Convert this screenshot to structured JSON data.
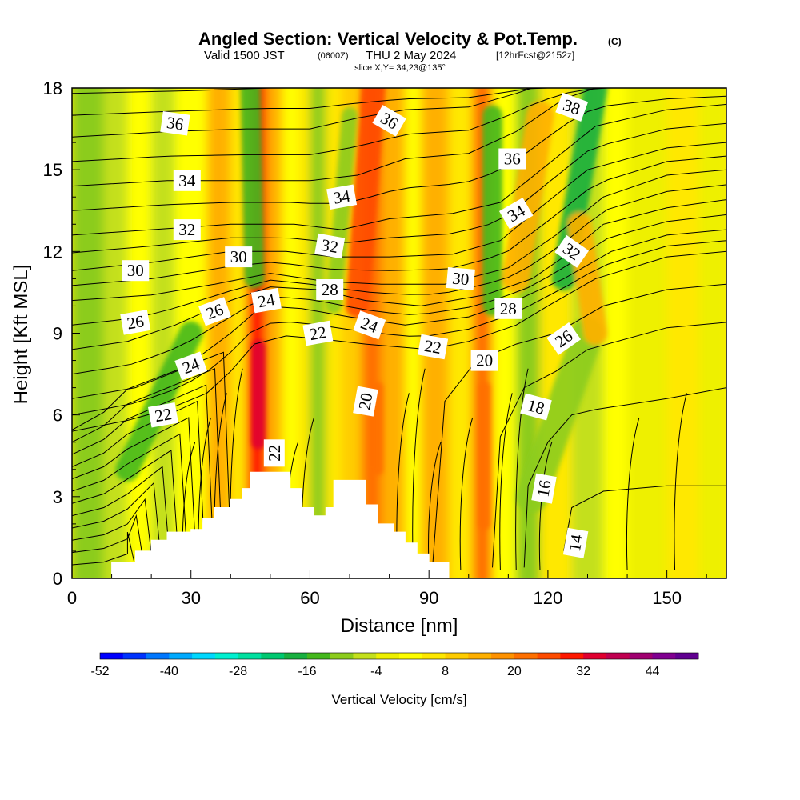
{
  "title": {
    "main": "Angled Section: Vertical Velocity & Pot.Temp.",
    "copyright": "(C)",
    "valid_prefix": "Valid 1500 JST",
    "valid_utc": "(0600Z)",
    "valid_date": "THU 2 May 2024",
    "forecast": "[12hrFcst@2152z]",
    "slice": "slice X,Y= 34,23@135°"
  },
  "chart_data": {
    "type": "heatmap",
    "xlabel": "Distance [nm]",
    "ylabel": "Height [Kft MSL]",
    "xlim": [
      0,
      165
    ],
    "ylim": [
      0,
      18
    ],
    "x_ticks": [
      "0",
      "30",
      "60",
      "90",
      "120",
      "150"
    ],
    "y_ticks": [
      "0",
      "3",
      "6",
      "9",
      "12",
      "15",
      "18"
    ],
    "background_w": 6,
    "columns": [
      {
        "x": [
          0,
          8
        ],
        "w": -10
      },
      {
        "x": [
          8,
          14
        ],
        "w": -8
      },
      {
        "x": [
          14,
          20
        ],
        "w": 0
      },
      {
        "x": [
          20,
          26
        ],
        "w": -8
      },
      {
        "x": [
          26,
          34
        ],
        "w": 0
      },
      {
        "x": [
          34,
          40
        ],
        "w": 12
      },
      {
        "x": [
          40,
          44
        ],
        "w": 4
      },
      {
        "x": [
          44,
          49
        ],
        "w": 30
      },
      {
        "x": [
          49,
          53
        ],
        "w": 12
      },
      {
        "x": [
          53,
          57
        ],
        "w": 0
      },
      {
        "x": [
          57,
          60
        ],
        "w": 6
      },
      {
        "x": [
          60,
          64
        ],
        "w": -12
      },
      {
        "x": [
          64,
          68
        ],
        "w": 4
      },
      {
        "x": [
          68,
          73
        ],
        "w": 10
      },
      {
        "x": [
          73,
          78
        ],
        "w": 22
      },
      {
        "x": [
          78,
          84
        ],
        "w": 14
      },
      {
        "x": [
          84,
          88
        ],
        "w": 2
      },
      {
        "x": [
          88,
          95
        ],
        "w": 14
      },
      {
        "x": [
          95,
          101
        ],
        "w": 4
      },
      {
        "x": [
          101,
          106
        ],
        "w": 20
      },
      {
        "x": [
          106,
          112
        ],
        "w": 2
      },
      {
        "x": [
          112,
          118
        ],
        "w": -10
      },
      {
        "x": [
          118,
          126
        ],
        "w": 6
      },
      {
        "x": [
          126,
          134
        ],
        "w": -6
      },
      {
        "x": [
          134,
          140
        ],
        "w": 2
      },
      {
        "x": [
          140,
          150
        ],
        "w": -4
      },
      {
        "x": [
          150,
          158
        ],
        "w": 4
      },
      {
        "x": [
          158,
          165
        ],
        "w": -4
      }
    ],
    "streaks": [
      {
        "x0": 14,
        "y0": 4,
        "x1": 30,
        "y1": 9,
        "width": 6,
        "w": -16
      },
      {
        "x0": 46,
        "y0": 11,
        "x1": 45,
        "y1": 18,
        "width": 5,
        "w": -16
      },
      {
        "x0": 72,
        "y0": 10,
        "x1": 76,
        "y1": 18,
        "width": 6,
        "w": 26
      },
      {
        "x0": 66,
        "y0": 10,
        "x1": 70,
        "y1": 17,
        "width": 4,
        "w": -12
      },
      {
        "x0": 106,
        "y0": 10,
        "x1": 106,
        "y1": 17,
        "width": 5,
        "w": -16
      },
      {
        "x0": 112,
        "y0": 11,
        "x1": 118,
        "y1": 17,
        "width": 7,
        "w": 14
      },
      {
        "x0": 124,
        "y0": 11,
        "x1": 132,
        "y1": 18,
        "width": 6,
        "w": -20
      },
      {
        "x0": 116,
        "y0": 3,
        "x1": 130,
        "y1": 9,
        "width": 8,
        "w": -12
      },
      {
        "x0": 132,
        "y0": 9,
        "x1": 128,
        "y1": 13,
        "width": 6,
        "w": 14
      },
      {
        "x0": 47,
        "y0": 5,
        "x1": 47,
        "y1": 8.5,
        "width": 3.5,
        "w": 34
      },
      {
        "x0": 77,
        "y0": 4,
        "x1": 77,
        "y1": 7,
        "width": 3,
        "w": 22
      },
      {
        "x0": 104,
        "y0": 2,
        "x1": 104,
        "y1": 7,
        "width": 3,
        "w": 22
      }
    ],
    "terrain": [
      [
        10,
        0.6
      ],
      [
        16,
        1.0
      ],
      [
        20,
        1.4
      ],
      [
        24,
        1.7
      ],
      [
        30,
        1.8
      ],
      [
        33,
        2.2
      ],
      [
        36,
        2.6
      ],
      [
        40,
        2.9
      ],
      [
        43,
        3.3
      ],
      [
        45,
        3.9
      ],
      [
        52,
        3.9
      ],
      [
        55,
        3.3
      ],
      [
        58,
        2.6
      ],
      [
        61,
        2.3
      ],
      [
        64,
        2.6
      ],
      [
        66,
        3.6
      ],
      [
        71,
        3.6
      ],
      [
        74,
        2.7
      ],
      [
        77,
        2.0
      ],
      [
        81,
        1.7
      ],
      [
        84,
        1.3
      ],
      [
        87,
        0.9
      ],
      [
        90,
        0.6
      ],
      [
        95,
        0.6
      ]
    ],
    "isentropes": [
      {
        "level": 14,
        "pts": [
          [
            124,
            1.0
          ],
          [
            126,
            2.6
          ],
          [
            134,
            3.2
          ],
          [
            150,
            3.4
          ],
          [
            165,
            3.4
          ]
        ]
      },
      {
        "level": 16,
        "pts": [
          [
            114,
            0.4
          ],
          [
            115,
            3.4
          ],
          [
            120,
            5.0
          ],
          [
            126,
            6.0
          ],
          [
            132,
            6.2
          ],
          [
            150,
            6.6
          ],
          [
            165,
            7.0
          ]
        ]
      },
      {
        "level": 18,
        "pts": [
          [
            106,
            0.4
          ],
          [
            108,
            5.2
          ],
          [
            114,
            7.0
          ],
          [
            122,
            7.6
          ],
          [
            130,
            8.4
          ],
          [
            150,
            9.2
          ],
          [
            165,
            9.4
          ]
        ]
      },
      {
        "level": 20,
        "pts": [
          [
            91,
            0.6
          ],
          [
            94,
            6.5
          ],
          [
            102,
            8.0
          ],
          [
            112,
            8.6
          ],
          [
            122,
            9.0
          ],
          [
            134,
            10.0
          ],
          [
            150,
            10.6
          ],
          [
            165,
            10.8
          ]
        ]
      },
      {
        "level": 22,
        "pts": [
          [
            0,
            5.4
          ],
          [
            14,
            5.8
          ],
          [
            24,
            6.2
          ],
          [
            34,
            6.8
          ],
          [
            40,
            7.6
          ],
          [
            46,
            8.6
          ],
          [
            54,
            8.9
          ],
          [
            62,
            8.8
          ],
          [
            74,
            8.6
          ],
          [
            90,
            8.4
          ],
          [
            100,
            8.7
          ],
          [
            112,
            9.3
          ],
          [
            120,
            10.0
          ],
          [
            132,
            11.0
          ],
          [
            150,
            11.8
          ],
          [
            165,
            12.0
          ]
        ]
      },
      {
        "level": 24,
        "pts": [
          [
            0,
            6.6
          ],
          [
            16,
            7.0
          ],
          [
            28,
            7.7
          ],
          [
            40,
            9.0
          ],
          [
            48,
            10.0
          ],
          [
            58,
            9.9
          ],
          [
            70,
            9.6
          ],
          [
            84,
            9.3
          ],
          [
            100,
            9.6
          ],
          [
            112,
            10.2
          ],
          [
            124,
            11.0
          ],
          [
            136,
            12.0
          ],
          [
            150,
            12.6
          ],
          [
            165,
            12.8
          ]
        ]
      },
      {
        "level": 26,
        "pts": [
          [
            0,
            8.4
          ],
          [
            14,
            8.7
          ],
          [
            26,
            9.3
          ],
          [
            40,
            10.2
          ],
          [
            50,
            10.7
          ],
          [
            62,
            10.6
          ],
          [
            74,
            10.2
          ],
          [
            88,
            10.0
          ],
          [
            104,
            10.4
          ],
          [
            116,
            11.0
          ],
          [
            124,
            11.8
          ],
          [
            134,
            13.0
          ],
          [
            150,
            13.6
          ],
          [
            165,
            13.9
          ]
        ]
      },
      {
        "level": 28,
        "pts": [
          [
            0,
            10.2
          ],
          [
            20,
            10.4
          ],
          [
            36,
            10.8
          ],
          [
            50,
            11.2
          ],
          [
            64,
            10.9
          ],
          [
            78,
            10.8
          ],
          [
            94,
            10.8
          ],
          [
            110,
            11.4
          ],
          [
            122,
            12.6
          ],
          [
            134,
            14.0
          ],
          [
            150,
            14.8
          ],
          [
            165,
            15.0
          ]
        ]
      },
      {
        "level": 30,
        "pts": [
          [
            0,
            11.3
          ],
          [
            20,
            11.6
          ],
          [
            40,
            12.0
          ],
          [
            54,
            12.0
          ],
          [
            66,
            11.8
          ],
          [
            80,
            11.8
          ],
          [
            96,
            11.9
          ],
          [
            108,
            12.4
          ],
          [
            118,
            13.6
          ],
          [
            130,
            15.0
          ],
          [
            150,
            15.8
          ],
          [
            165,
            16.0
          ]
        ]
      },
      {
        "level": 32,
        "pts": [
          [
            0,
            12.6
          ],
          [
            20,
            12.8
          ],
          [
            40,
            13.0
          ],
          [
            56,
            13.0
          ],
          [
            68,
            12.8
          ],
          [
            80,
            13.2
          ],
          [
            96,
            13.4
          ],
          [
            108,
            13.8
          ],
          [
            120,
            15.2
          ],
          [
            132,
            16.6
          ],
          [
            150,
            17.2
          ],
          [
            165,
            17.4
          ]
        ]
      },
      {
        "level": 34,
        "pts": [
          [
            0,
            14.4
          ],
          [
            24,
            14.6
          ],
          [
            44,
            14.6
          ],
          [
            60,
            14.6
          ],
          [
            72,
            14.8
          ],
          [
            84,
            15.4
          ],
          [
            100,
            15.6
          ],
          [
            112,
            16.4
          ],
          [
            124,
            17.6
          ],
          [
            132,
            18.0
          ]
        ]
      },
      {
        "level": 36,
        "pts": [
          [
            0,
            16.2
          ],
          [
            24,
            16.4
          ],
          [
            44,
            16.5
          ],
          [
            60,
            16.5
          ],
          [
            72,
            16.9
          ],
          [
            84,
            17.2
          ],
          [
            100,
            17.3
          ],
          [
            112,
            17.8
          ],
          [
            116,
            18.0
          ]
        ]
      },
      {
        "level": 38,
        "pts": [
          [
            0,
            17.8
          ],
          [
            30,
            17.9
          ],
          [
            50,
            18.0
          ]
        ]
      }
    ],
    "minor_isentropes_count": 24,
    "contour_labels": [
      {
        "text": "36",
        "x": 26,
        "y": 16.7,
        "angle": 8
      },
      {
        "text": "36",
        "x": 80,
        "y": 16.8,
        "angle": 30
      },
      {
        "text": "38",
        "x": 126,
        "y": 17.3,
        "angle": 20
      },
      {
        "text": "36",
        "x": 111,
        "y": 15.4,
        "angle": 0
      },
      {
        "text": "34",
        "x": 29,
        "y": 14.6,
        "angle": 0
      },
      {
        "text": "34",
        "x": 68,
        "y": 14.0,
        "angle": -10
      },
      {
        "text": "34",
        "x": 112,
        "y": 13.4,
        "angle": -30
      },
      {
        "text": "32",
        "x": 29,
        "y": 12.8,
        "angle": 0
      },
      {
        "text": "32",
        "x": 65,
        "y": 12.2,
        "angle": 10
      },
      {
        "text": "32",
        "x": 126,
        "y": 12.0,
        "angle": 35
      },
      {
        "text": "30",
        "x": 16,
        "y": 11.3,
        "angle": 0
      },
      {
        "text": "30",
        "x": 42,
        "y": 11.8,
        "angle": 0
      },
      {
        "text": "30",
        "x": 98,
        "y": 11.0,
        "angle": 5
      },
      {
        "text": "28",
        "x": 65,
        "y": 10.6,
        "angle": 0
      },
      {
        "text": "28",
        "x": 110,
        "y": 9.9,
        "angle": 0
      },
      {
        "text": "26",
        "x": 16,
        "y": 9.4,
        "angle": -10
      },
      {
        "text": "26",
        "x": 36,
        "y": 9.8,
        "angle": -20
      },
      {
        "text": "26",
        "x": 124,
        "y": 8.8,
        "angle": -35
      },
      {
        "text": "24",
        "x": 49,
        "y": 10.2,
        "angle": -10
      },
      {
        "text": "24",
        "x": 75,
        "y": 9.3,
        "angle": 20
      },
      {
        "text": "24",
        "x": 30,
        "y": 7.8,
        "angle": -20
      },
      {
        "text": "22",
        "x": 62,
        "y": 9.0,
        "angle": -10
      },
      {
        "text": "22",
        "x": 91,
        "y": 8.5,
        "angle": 10
      },
      {
        "text": "22",
        "x": 23,
        "y": 6.0,
        "angle": -10
      },
      {
        "text": "22",
        "x": 51,
        "y": 4.6,
        "angle": -90
      },
      {
        "text": "20",
        "x": 104,
        "y": 8.0,
        "angle": 0
      },
      {
        "text": "20",
        "x": 74,
        "y": 6.5,
        "angle": -80
      },
      {
        "text": "18",
        "x": 117,
        "y": 6.3,
        "angle": 15
      },
      {
        "text": "16",
        "x": 119,
        "y": 3.3,
        "angle": -80
      },
      {
        "text": "14",
        "x": 127,
        "y": 1.3,
        "angle": -80
      }
    ]
  },
  "colorbar": {
    "title": "Vertical Velocity [cm/s]",
    "labels": [
      "-52",
      "-40",
      "-28",
      "-16",
      "-4",
      "8",
      "20",
      "32",
      "44"
    ],
    "colors": [
      "#0000ff",
      "#0033ff",
      "#0077ff",
      "#00aaff",
      "#00d8ff",
      "#00f0d0",
      "#00e0a0",
      "#00c870",
      "#18b040",
      "#44b81c",
      "#8ccc1c",
      "#c4e01c",
      "#eef000",
      "#ffff00",
      "#ffe800",
      "#ffcc00",
      "#ffb000",
      "#ff9200",
      "#ff7000",
      "#ff4c00",
      "#ff1800",
      "#e00030",
      "#c00050",
      "#a00070",
      "#800090",
      "#600090"
    ],
    "min": -52,
    "step": 4
  }
}
